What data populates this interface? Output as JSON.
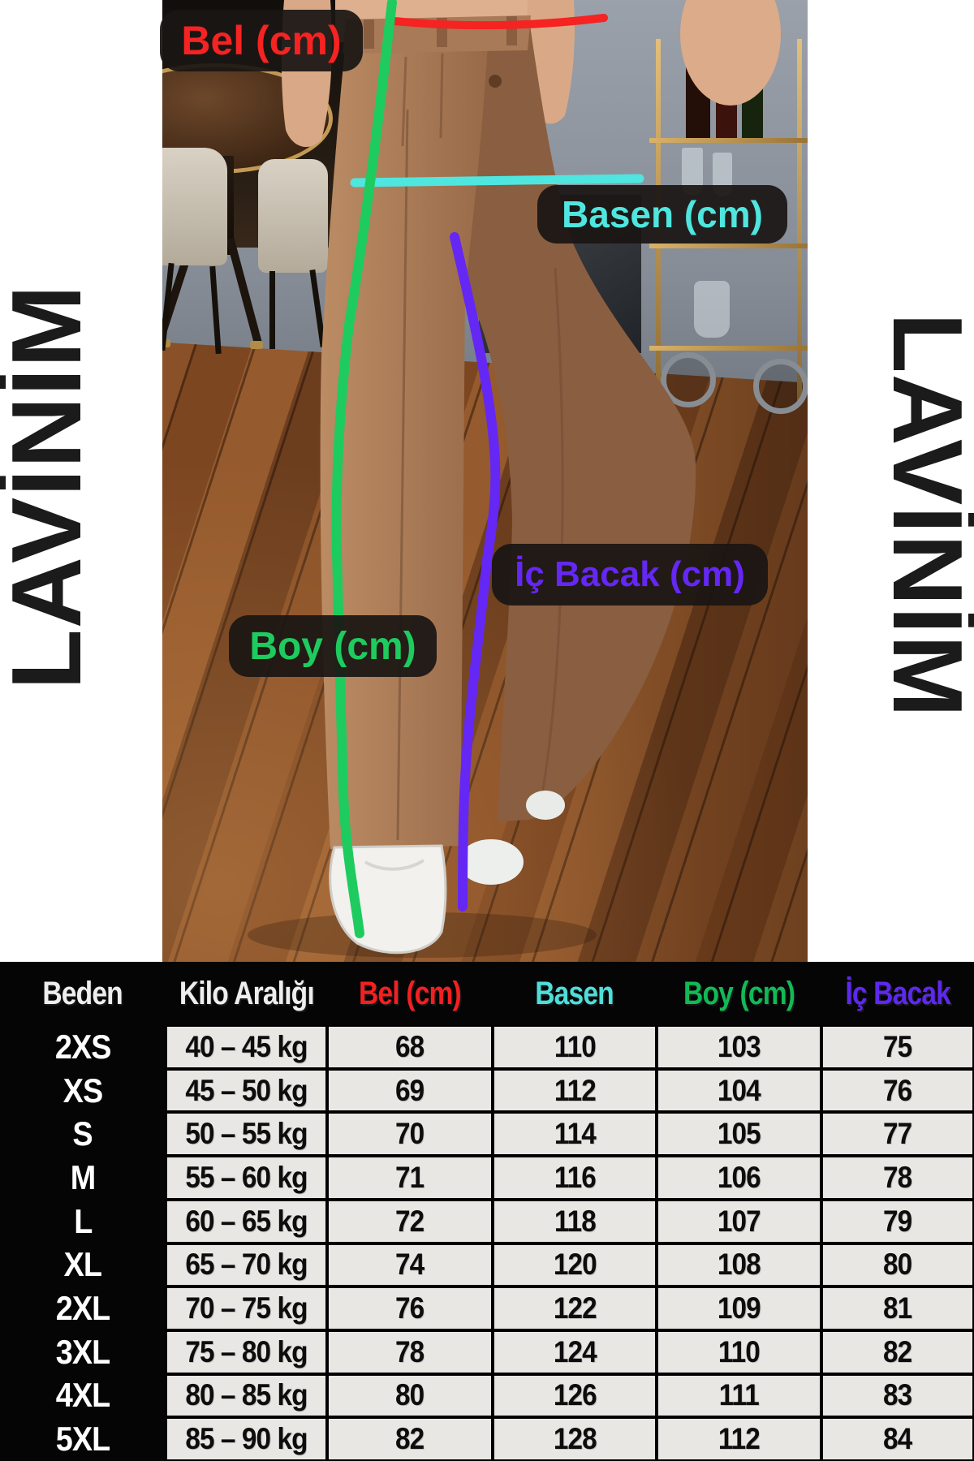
{
  "brand": {
    "name": "LAVİNİM"
  },
  "annotations": {
    "bel": {
      "label": "Bel (cm)",
      "color": "#f52322"
    },
    "basen": {
      "label": "Basen (cm)",
      "color": "#4fe6df"
    },
    "boy": {
      "label": "Boy (cm)",
      "color": "#1ecb5f"
    },
    "ic_bacak": {
      "label": "İç Bacak (cm)",
      "color": "#6527f4"
    }
  },
  "size_table": {
    "columns": [
      {
        "label": "Beden",
        "color": "#efeeee"
      },
      {
        "label": "Kilo Aralığı",
        "color": "#efeeee"
      },
      {
        "label": "Bel (cm)",
        "color": "#f32021"
      },
      {
        "label": "Basen",
        "color": "#4fdeda"
      },
      {
        "label": "Boy (cm)",
        "color": "#12ba56"
      },
      {
        "label": "İç Bacak",
        "color": "#5d28ef"
      }
    ]
  },
  "chart_data": {
    "type": "table",
    "columns": [
      "Beden",
      "Kilo Aralığı",
      "Bel (cm)",
      "Basen",
      "Boy (cm)",
      "İç Bacak"
    ],
    "rows": [
      [
        "2XS",
        "40 – 45 kg",
        "68",
        "110",
        "103",
        "75"
      ],
      [
        "XS",
        "45 – 50 kg",
        "69",
        "112",
        "104",
        "76"
      ],
      [
        "S",
        "50 – 55 kg",
        "70",
        "114",
        "105",
        "77"
      ],
      [
        "M",
        "55 – 60 kg",
        "71",
        "116",
        "106",
        "78"
      ],
      [
        "L",
        "60 – 65 kg",
        "72",
        "118",
        "107",
        "79"
      ],
      [
        "XL",
        "65 – 70 kg",
        "74",
        "120",
        "108",
        "80"
      ],
      [
        "2XL",
        "70 – 75 kg",
        "76",
        "122",
        "109",
        "81"
      ],
      [
        "3XL",
        "75 – 80 kg",
        "78",
        "124",
        "110",
        "82"
      ],
      [
        "4XL",
        "80 – 85 kg",
        "80",
        "126",
        "111",
        "83"
      ],
      [
        "5XL",
        "85 – 90 kg",
        "82",
        "128",
        "112",
        "84"
      ]
    ]
  }
}
